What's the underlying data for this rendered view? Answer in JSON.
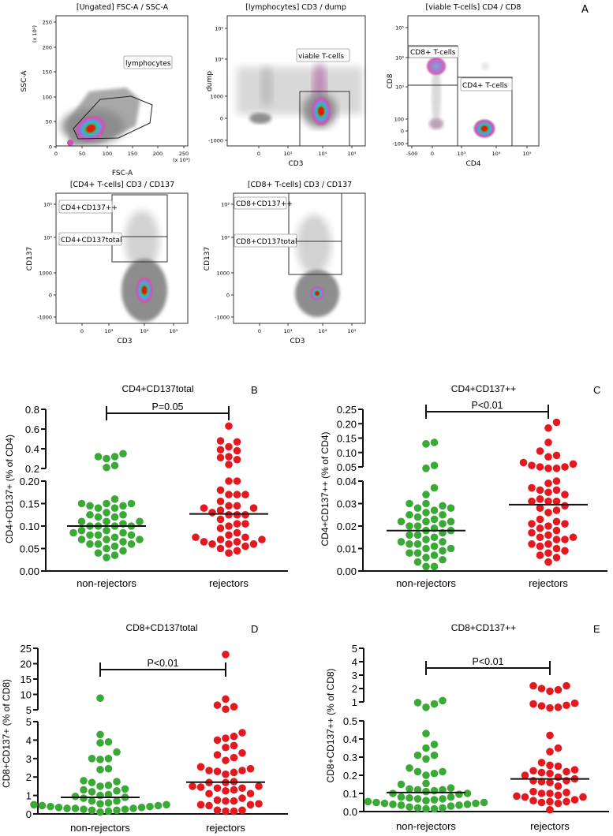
{
  "panel_a": {
    "letter": "A",
    "plots": [
      {
        "title": "[Ungated] FSC-A / SSC-A",
        "xlabel": "FSC-A",
        "ylabel": "SSC-A",
        "xticks": [
          "0",
          "50",
          "100",
          "150",
          "200",
          "250"
        ],
        "yticks": [
          "250",
          "200",
          "150",
          "100",
          "50",
          "0"
        ],
        "xscale": "(x 10³)",
        "yscale": "(x 10³)",
        "gates": [
          "lymphocytes"
        ]
      },
      {
        "title": "[lymphocytes] CD3 / dump",
        "xlabel": "CD3",
        "ylabel": "dump",
        "xticks": [
          "0",
          "10³",
          "10⁴",
          "10⁵"
        ],
        "yticks": [
          "10⁵",
          "10⁴",
          "1000",
          "0",
          "-1000"
        ],
        "gates": [
          "viable T-cells"
        ]
      },
      {
        "title": "[viable T-cells] CD4 / CD8",
        "xlabel": "CD4",
        "ylabel": "CD8",
        "xticks": [
          "-500",
          "0",
          "10³",
          "10⁴",
          "10⁵"
        ],
        "yticks": [
          "10⁵",
          "10⁴",
          "10³",
          "100",
          "0",
          "-100"
        ],
        "gates": [
          "CD8+ T-cells",
          "CD4+ T-cells"
        ]
      },
      {
        "title": "[CD4+ T-cells] CD3 / CD137",
        "xlabel": "CD3",
        "ylabel": "CD137",
        "xticks": [
          "0",
          "10³",
          "10⁴",
          "10⁵"
        ],
        "yticks": [
          "10⁵",
          "10⁴",
          "1000",
          "0",
          "-1000"
        ],
        "gates": [
          "CD4+CD137++",
          "CD4+CD137total"
        ]
      },
      {
        "title": "[CD8+ T-cells] CD3 / CD137",
        "xlabel": "CD3",
        "ylabel": "CD137",
        "xticks": [
          "0",
          "10³",
          "10⁴",
          "10⁵"
        ],
        "yticks": [
          "10⁵",
          "10⁴",
          "1000",
          "0",
          "-1000"
        ],
        "gates": [
          "CD8+CD137++",
          "CD8+CD137total"
        ]
      }
    ]
  },
  "colors": {
    "non_rejectors": "#3aa935",
    "rejectors": "#e3191f",
    "axis": "#111111"
  },
  "chart_data": [
    {
      "type": "scatter",
      "panel": "B",
      "title": "CD4+CD137total",
      "ylabel": "CD4+CD137+  (% of CD4)",
      "categories": [
        "non-rejectors",
        "rejectors"
      ],
      "p_value": "P=0.05",
      "axis_break": true,
      "ylim_lower": [
        0,
        0.2
      ],
      "ylim_upper": [
        0.2,
        0.8
      ],
      "yticks_lower": [
        "0.00",
        "0.05",
        "0.10",
        "0.15",
        "0.20"
      ],
      "yticks_upper": [
        "0.2",
        "0.4",
        "0.6",
        "0.8"
      ],
      "yticks_lower_values": [
        0,
        0.05,
        0.1,
        0.15,
        0.2
      ],
      "yticks_upper_values": [
        0.2,
        0.4,
        0.6,
        0.8
      ],
      "series": [
        {
          "name": "non-rejectors",
          "median": 0.1,
          "values": [
            0.35,
            0.32,
            0.3,
            0.32,
            0.21,
            0.23,
            0.16,
            0.15,
            0.15,
            0.145,
            0.145,
            0.15,
            0.14,
            0.14,
            0.13,
            0.125,
            0.125,
            0.12,
            0.12,
            0.11,
            0.11,
            0.11,
            0.105,
            0.1,
            0.1,
            0.1,
            0.1,
            0.09,
            0.09,
            0.085,
            0.085,
            0.08,
            0.08,
            0.08,
            0.075,
            0.07,
            0.07,
            0.07,
            0.065,
            0.06,
            0.06,
            0.06,
            0.055,
            0.05,
            0.045,
            0.04,
            0.035,
            0.03
          ]
        },
        {
          "name": "rejectors",
          "median": 0.127,
          "values": [
            0.63,
            0.47,
            0.48,
            0.42,
            0.39,
            0.38,
            0.32,
            0.31,
            0.29,
            0.24,
            0.2,
            0.2,
            0.18,
            0.17,
            0.17,
            0.17,
            0.155,
            0.145,
            0.145,
            0.14,
            0.14,
            0.135,
            0.13,
            0.125,
            0.125,
            0.125,
            0.115,
            0.105,
            0.105,
            0.1,
            0.095,
            0.085,
            0.08,
            0.075,
            0.075,
            0.07,
            0.07,
            0.065,
            0.065,
            0.06,
            0.06,
            0.06,
            0.055,
            0.05,
            0.045,
            0.04
          ]
        }
      ]
    },
    {
      "type": "scatter",
      "panel": "C",
      "title": "CD4+CD137++",
      "ylabel": "CD4+CD137++  (% of CD4)",
      "categories": [
        "non-rejectors",
        "rejectors"
      ],
      "p_value": "P<0.01",
      "axis_break": true,
      "ylim_lower": [
        0,
        0.04
      ],
      "ylim_upper": [
        0.05,
        0.25
      ],
      "yticks_lower": [
        "0.00",
        "0.01",
        "0.02",
        "0.03",
        "0.04"
      ],
      "yticks_upper": [
        "0.05",
        "0.10",
        "0.15",
        "0.20",
        "0.25"
      ],
      "yticks_lower_values": [
        0,
        0.01,
        0.02,
        0.03,
        0.04
      ],
      "yticks_upper_values": [
        0.05,
        0.1,
        0.15,
        0.2,
        0.25
      ],
      "series": [
        {
          "name": "non-rejectors",
          "median": 0.018,
          "values": [
            0.13,
            0.135,
            0.055,
            0.045,
            0.037,
            0.034,
            0.03,
            0.03,
            0.029,
            0.028,
            0.028,
            0.027,
            0.026,
            0.025,
            0.025,
            0.024,
            0.023,
            0.022,
            0.022,
            0.022,
            0.021,
            0.02,
            0.02,
            0.019,
            0.018,
            0.018,
            0.017,
            0.016,
            0.016,
            0.015,
            0.014,
            0.013,
            0.013,
            0.012,
            0.012,
            0.011,
            0.01,
            0.01,
            0.009,
            0.008,
            0.008,
            0.007,
            0.006,
            0.005,
            0.004,
            0.002,
            0.002
          ]
        },
        {
          "name": "rejectors",
          "median": 0.0295,
          "values": [
            0.205,
            0.185,
            0.135,
            0.105,
            0.09,
            0.085,
            0.065,
            0.06,
            0.055,
            0.05,
            0.05,
            0.045,
            0.045,
            0.04,
            0.039,
            0.037,
            0.036,
            0.036,
            0.035,
            0.034,
            0.032,
            0.031,
            0.031,
            0.031,
            0.029,
            0.028,
            0.027,
            0.026,
            0.023,
            0.022,
            0.021,
            0.021,
            0.02,
            0.019,
            0.018,
            0.017,
            0.016,
            0.015,
            0.015,
            0.014,
            0.014,
            0.012,
            0.012,
            0.011,
            0.01,
            0.009,
            0.008,
            0.007,
            0.006,
            0.004
          ]
        }
      ]
    },
    {
      "type": "scatter",
      "panel": "D",
      "title": "CD8+CD137total",
      "ylabel": "CD8+CD137+  (% of CD8)",
      "categories": [
        "non-rejectors",
        "rejectors"
      ],
      "p_value": "P<0.01",
      "axis_break": true,
      "ylim_lower": [
        0,
        5
      ],
      "ylim_upper": [
        5,
        25
      ],
      "yticks_lower": [
        "0",
        "1",
        "2",
        "3",
        "4",
        "5"
      ],
      "yticks_upper": [
        "5",
        "10",
        "15",
        "20",
        "25"
      ],
      "yticks_lower_values": [
        0,
        1,
        2,
        3,
        4,
        5
      ],
      "yticks_upper_values": [
        5,
        10,
        15,
        20,
        25
      ],
      "series": [
        {
          "name": "non-rejectors",
          "median": 0.9,
          "values": [
            8.8,
            4.3,
            3.9,
            3.85,
            3.35,
            3.0,
            2.95,
            3.0,
            2.45,
            2.4,
            1.8,
            1.75,
            1.7,
            1.55,
            1.5,
            1.35,
            1.3,
            1.25,
            1.2,
            1.05,
            1.0,
            0.95,
            0.9,
            0.85,
            0.7,
            0.7,
            0.6,
            0.55,
            0.5,
            0.5,
            0.45,
            0.45,
            0.4,
            0.4,
            0.35,
            0.35,
            0.3,
            0.3,
            0.3,
            0.25,
            0.25,
            0.2,
            0.2,
            0.15,
            0.1
          ]
        },
        {
          "name": "rejectors",
          "median": 1.72,
          "values": [
            23,
            8.5,
            6.5,
            6.0,
            5.2,
            4.4,
            4.2,
            4.1,
            4.0,
            3.7,
            3.6,
            3.3,
            3.2,
            3.05,
            2.9,
            2.55,
            2.45,
            2.35,
            2.35,
            2.3,
            2.25,
            2.15,
            1.75,
            1.7,
            1.7,
            1.5,
            1.5,
            1.45,
            1.4,
            1.4,
            1.3,
            1.25,
            1.1,
            1.1,
            0.85,
            0.75,
            0.7,
            0.7,
            0.55,
            0.5,
            0.5,
            0.45,
            0.2,
            0.2,
            0.15,
            0.15
          ]
        }
      ]
    },
    {
      "type": "scatter",
      "panel": "E",
      "title": "CD8+CD137++",
      "ylabel": "CD8+CD137++  (% of CD8)",
      "categories": [
        "non-rejectors",
        "rejectors"
      ],
      "p_value": "P<0.01",
      "axis_break": true,
      "ylim_lower": [
        0,
        0.5
      ],
      "ylim_upper": [
        1,
        5
      ],
      "yticks_lower": [
        "0.0",
        "0.1",
        "0.2",
        "0.3",
        "0.4",
        "0.5"
      ],
      "yticks_upper": [
        "1",
        "2",
        "3",
        "4",
        "5"
      ],
      "yticks_lower_values": [
        0,
        0.1,
        0.2,
        0.3,
        0.4,
        0.5
      ],
      "yticks_upper_values": [
        1,
        2,
        3,
        4,
        5
      ],
      "series": [
        {
          "name": "non-rejectors",
          "median": 0.105,
          "values": [
            1.1,
            0.95,
            0.85,
            0.6,
            0.43,
            0.37,
            0.35,
            0.31,
            0.31,
            0.29,
            0.24,
            0.22,
            0.22,
            0.21,
            0.2,
            0.155,
            0.15,
            0.13,
            0.125,
            0.12,
            0.12,
            0.115,
            0.11,
            0.1,
            0.1,
            0.095,
            0.08,
            0.08,
            0.075,
            0.07,
            0.07,
            0.065,
            0.06,
            0.055,
            0.05,
            0.05,
            0.045,
            0.045,
            0.04,
            0.04,
            0.035,
            0.035,
            0.03,
            0.025,
            0.02,
            0.02,
            0.015,
            0.015
          ]
        },
        {
          "name": "rejectors",
          "median": 0.18,
          "values": [
            2.2,
            2.2,
            2.0,
            1.9,
            1.8,
            0.9,
            0.85,
            0.75,
            0.7,
            0.6,
            0.55,
            0.42,
            0.35,
            0.33,
            0.27,
            0.255,
            0.25,
            0.23,
            0.225,
            0.22,
            0.215,
            0.21,
            0.2,
            0.19,
            0.18,
            0.17,
            0.17,
            0.165,
            0.16,
            0.14,
            0.11,
            0.105,
            0.1,
            0.1,
            0.09,
            0.085,
            0.08,
            0.08,
            0.065,
            0.06,
            0.055,
            0.055,
            0.05,
            0.045,
            0.01
          ]
        }
      ]
    }
  ]
}
